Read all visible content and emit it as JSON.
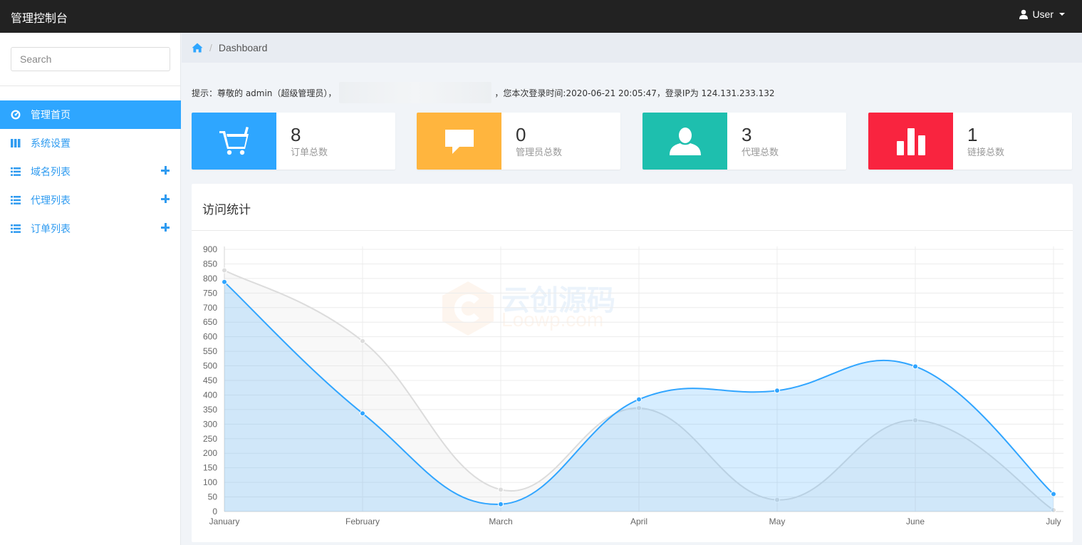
{
  "app": {
    "title": "管理控制台"
  },
  "user_menu": {
    "label": "User"
  },
  "sidebar": {
    "search_placeholder": "Search",
    "items": [
      {
        "label": "管理首页",
        "icon": "dashboard-icon",
        "active": true,
        "expandable": false
      },
      {
        "label": "系统设置",
        "icon": "grid-icon",
        "active": false,
        "expandable": false
      },
      {
        "label": "域名列表",
        "icon": "list-icon",
        "active": false,
        "expandable": true
      },
      {
        "label": "代理列表",
        "icon": "list-icon",
        "active": false,
        "expandable": true
      },
      {
        "label": "订单列表",
        "icon": "list-icon",
        "active": false,
        "expandable": true
      }
    ]
  },
  "breadcrumb": {
    "home_icon": "home-icon",
    "current": "Dashboard"
  },
  "notice": {
    "prefix": "提示：尊敬的 admin（超级管理员），",
    "suffix": "，您本次登录时间:2020-06-21 20:05:47，登录IP为 124.131.233.132"
  },
  "stats": [
    {
      "value": "8",
      "label": "订单总数",
      "icon": "cart-icon",
      "color": "#2ea6ff"
    },
    {
      "value": "0",
      "label": "管理员总数",
      "icon": "comment-icon",
      "color": "#ffb53e"
    },
    {
      "value": "3",
      "label": "代理总数",
      "icon": "user-icon",
      "color": "#1ebfae"
    },
    {
      "value": "1",
      "label": "链接总数",
      "icon": "bar-chart-icon",
      "color": "#f9243f"
    }
  ],
  "panel": {
    "title": "访问统计"
  },
  "watermark": {
    "main": "云创源码",
    "sub": "Loowp.com"
  },
  "chart_data": {
    "type": "line",
    "title": "访问统计",
    "categories": [
      "January",
      "February",
      "March",
      "April",
      "May",
      "June",
      "July"
    ],
    "ylim": [
      0,
      900
    ],
    "ytick_step": 50,
    "grid": true,
    "series": [
      {
        "values": [
          828,
          585,
          75,
          355,
          40,
          313,
          5
        ],
        "color": "#dcdcdc",
        "fill": "rgba(220,220,220,0.2)"
      },
      {
        "values": [
          788,
          337,
          25,
          385,
          415,
          498,
          60
        ],
        "color": "#30a5ff",
        "fill": "rgba(48,164,255,0.2)"
      }
    ]
  }
}
